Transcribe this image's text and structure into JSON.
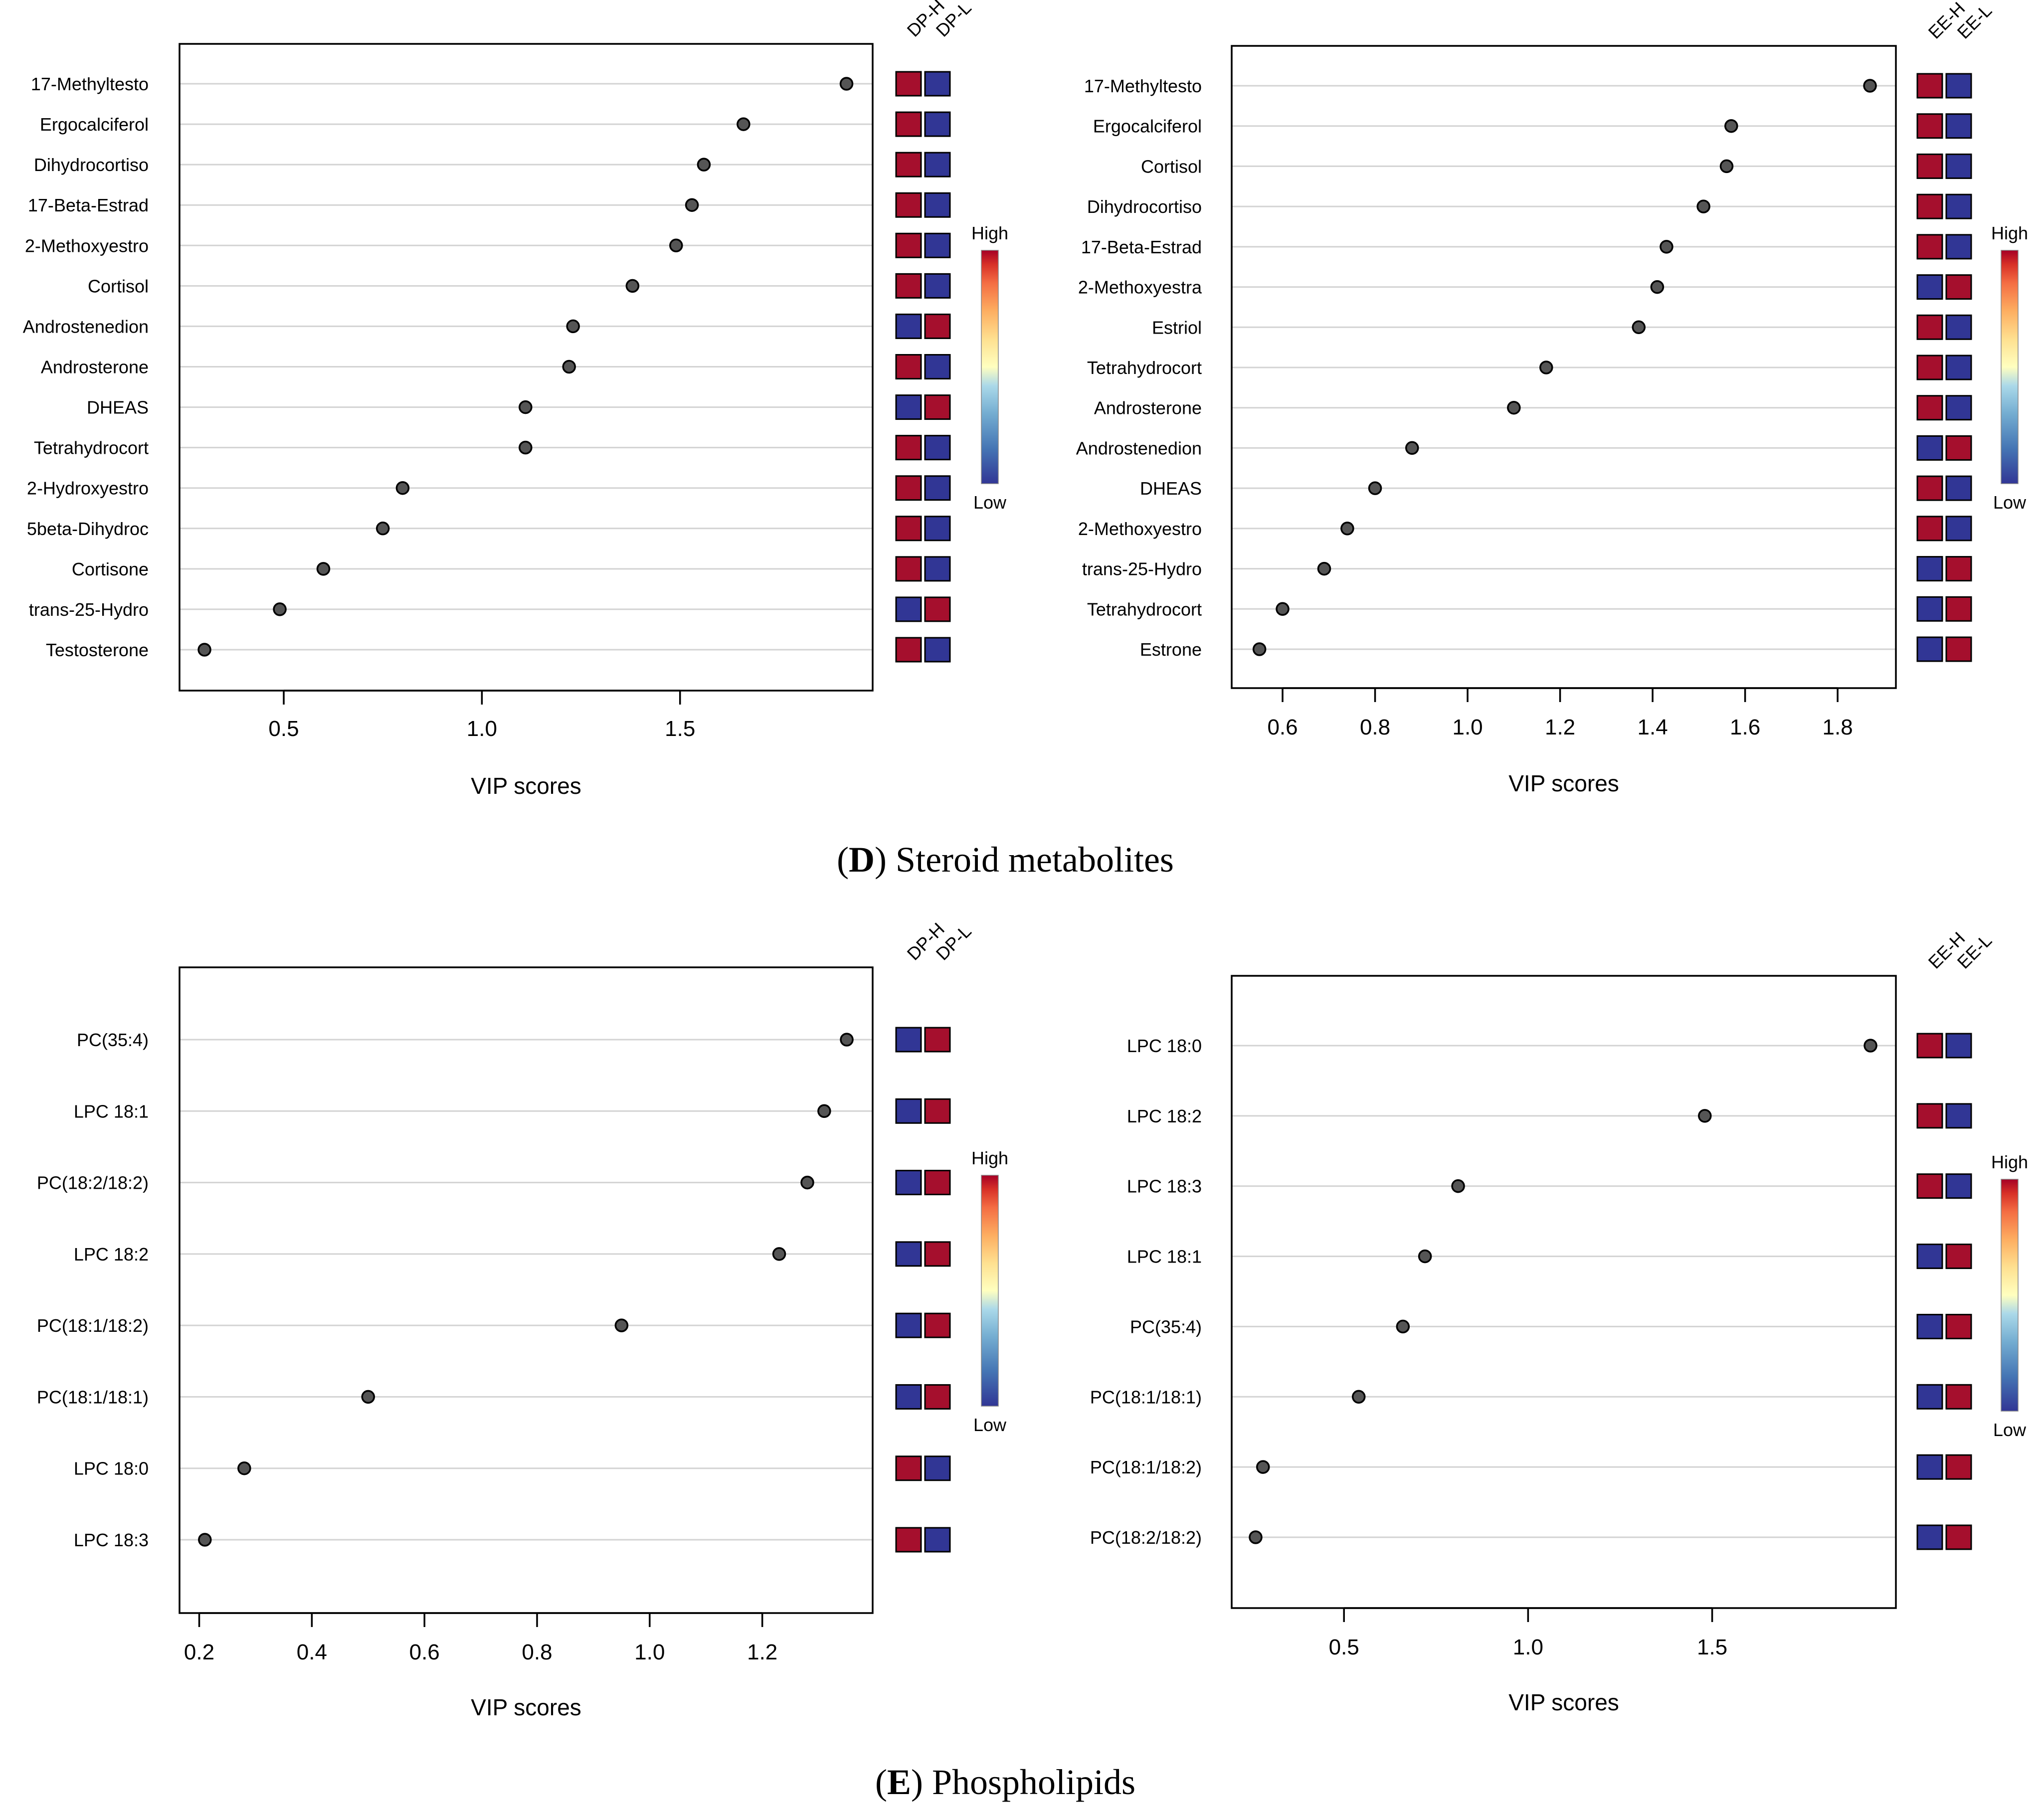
{
  "colors": {
    "high": "#a50f2d",
    "low": "#313695",
    "frame": "#000000",
    "grid": "#d3d3d3",
    "dot_fill": "#555555"
  },
  "legend": {
    "high_label": "High",
    "low_label": "Low"
  },
  "sections": [
    {
      "prefix": "D",
      "title": "Steroid metabolites"
    },
    {
      "prefix": "E",
      "title": "Phospholipids"
    }
  ],
  "chart_data": [
    {
      "type": "scatter",
      "xlabel": "VIP scores",
      "xlim": [
        0.237,
        1.986
      ],
      "xticks": [
        0.5,
        1.0,
        1.5
      ],
      "xtick_labels": [
        "0.5",
        "1.0",
        "1.5"
      ],
      "groups": [
        "DP-H",
        "DP-L"
      ],
      "labels": [
        "17-Methyltesto",
        "Ergocalciferol",
        "Dihydrocortiso",
        "17-Beta-Estrad",
        "2-Methoxyestro",
        "Cortisol",
        "Androstenedion",
        "Androsterone",
        "DHEAS",
        "Tetrahydrocort",
        "2-Hydroxyestro",
        "5beta-Dihydroc",
        "Cortisone",
        "trans-25-Hydro",
        "Testosterone"
      ],
      "values": [
        1.92,
        1.66,
        1.56,
        1.53,
        1.49,
        1.38,
        1.23,
        1.22,
        1.11,
        1.11,
        0.8,
        0.75,
        0.6,
        0.49,
        0.3
      ],
      "heat": [
        [
          "high",
          "low"
        ],
        [
          "high",
          "low"
        ],
        [
          "high",
          "low"
        ],
        [
          "high",
          "low"
        ],
        [
          "high",
          "low"
        ],
        [
          "high",
          "low"
        ],
        [
          "low",
          "high"
        ],
        [
          "high",
          "low"
        ],
        [
          "low",
          "high"
        ],
        [
          "high",
          "low"
        ],
        [
          "high",
          "low"
        ],
        [
          "high",
          "low"
        ],
        [
          "high",
          "low"
        ],
        [
          "low",
          "high"
        ],
        [
          "high",
          "low"
        ]
      ]
    },
    {
      "type": "scatter",
      "xlabel": "VIP scores",
      "xlim": [
        0.49,
        1.926
      ],
      "xticks": [
        0.6,
        0.8,
        1.0,
        1.2,
        1.4,
        1.6,
        1.8
      ],
      "xtick_labels": [
        "0.6",
        "0.8",
        "1.0",
        "1.2",
        "1.4",
        "1.6",
        "1.8"
      ],
      "groups": [
        "EE-H",
        "EE-L"
      ],
      "labels": [
        "17-Methyltesto",
        "Ergocalciferol",
        "Cortisol",
        "Dihydrocortiso",
        "17-Beta-Estrad",
        "2-Methoxyestra",
        "Estriol",
        "Tetrahydrocort",
        "Androsterone",
        "Androstenedion",
        "DHEAS",
        "2-Methoxyestro",
        "trans-25-Hydro",
        "Tetrahydrocort",
        "Estrone"
      ],
      "values": [
        1.87,
        1.57,
        1.56,
        1.51,
        1.43,
        1.41,
        1.37,
        1.17,
        1.1,
        0.88,
        0.8,
        0.74,
        0.69,
        0.6,
        0.55
      ],
      "heat": [
        [
          "high",
          "low"
        ],
        [
          "high",
          "low"
        ],
        [
          "high",
          "low"
        ],
        [
          "high",
          "low"
        ],
        [
          "high",
          "low"
        ],
        [
          "low",
          "high"
        ],
        [
          "high",
          "low"
        ],
        [
          "high",
          "low"
        ],
        [
          "high",
          "low"
        ],
        [
          "low",
          "high"
        ],
        [
          "high",
          "low"
        ],
        [
          "high",
          "low"
        ],
        [
          "low",
          "high"
        ],
        [
          "low",
          "high"
        ],
        [
          "low",
          "high"
        ]
      ]
    },
    {
      "type": "scatter",
      "xlabel": "VIP scores",
      "xlim": [
        0.165,
        1.396
      ],
      "xticks": [
        0.2,
        0.4,
        0.6,
        0.8,
        1.0,
        1.2
      ],
      "xtick_labels": [
        "0.2",
        "0.4",
        "0.6",
        "0.8",
        "1.0",
        "1.2"
      ],
      "groups": [
        "DP-H",
        "DP-L"
      ],
      "labels": [
        "PC(35:4)",
        "LPC 18:1",
        "PC(18:2/18:2)",
        "LPC 18:2",
        "PC(18:1/18:2)",
        "PC(18:1/18:1)",
        "LPC 18:0",
        "LPC 18:3"
      ],
      "values": [
        1.35,
        1.31,
        1.28,
        1.23,
        0.95,
        0.5,
        0.28,
        0.21
      ],
      "heat": [
        [
          "low",
          "high"
        ],
        [
          "low",
          "high"
        ],
        [
          "low",
          "high"
        ],
        [
          "low",
          "high"
        ],
        [
          "low",
          "high"
        ],
        [
          "low",
          "high"
        ],
        [
          "high",
          "low"
        ],
        [
          "high",
          "low"
        ]
      ]
    },
    {
      "type": "scatter",
      "xlabel": "VIP scores",
      "xlim": [
        0.195,
        1.999
      ],
      "xticks": [
        0.5,
        1.0,
        1.5
      ],
      "xtick_labels": [
        "0.5",
        "1.0",
        "1.5"
      ],
      "groups": [
        "EE-H",
        "EE-L"
      ],
      "labels": [
        "LPC 18:0",
        "LPC 18:2",
        "LPC 18:3",
        "LPC 18:1",
        "PC(35:4)",
        "PC(18:1/18:1)",
        "PC(18:1/18:2)",
        "PC(18:2/18:2)"
      ],
      "values": [
        1.93,
        1.48,
        0.81,
        0.72,
        0.66,
        0.54,
        0.28,
        0.26
      ],
      "heat": [
        [
          "high",
          "low"
        ],
        [
          "high",
          "low"
        ],
        [
          "high",
          "low"
        ],
        [
          "low",
          "high"
        ],
        [
          "low",
          "high"
        ],
        [
          "low",
          "high"
        ],
        [
          "low",
          "high"
        ],
        [
          "low",
          "high"
        ]
      ]
    }
  ]
}
